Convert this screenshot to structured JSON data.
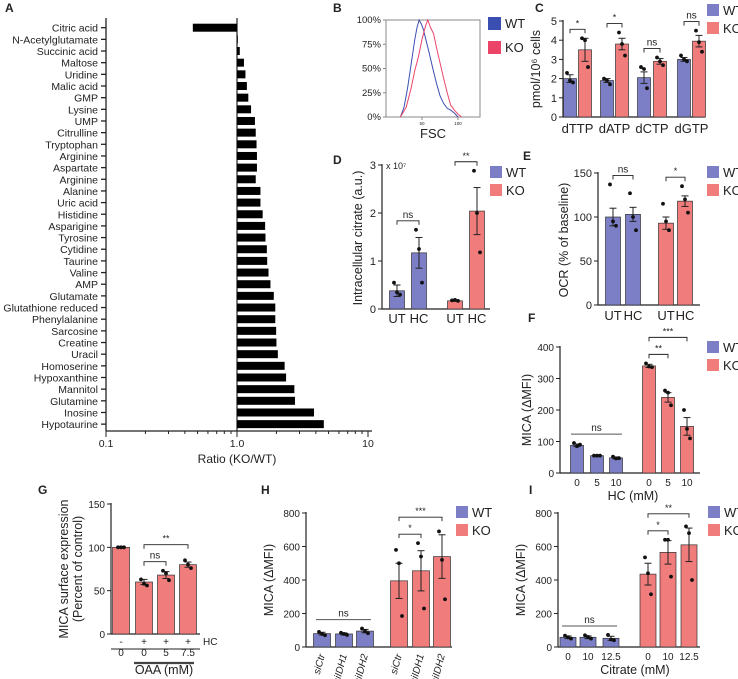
{
  "panel_letters": [
    "A",
    "B",
    "C",
    "D",
    "E",
    "F",
    "G",
    "H",
    "I"
  ],
  "colors": {
    "WT": "#7c7fc6",
    "KO": "#f07c7c",
    "WT_line": "#3b4fb3",
    "KO_line": "#ec4468"
  },
  "chart_data": [
    {
      "panel": "A",
      "type": "bar",
      "orientation": "horizontal",
      "xscale": "log",
      "xlim": [
        0.1,
        10
      ],
      "xticks": [
        "0.1",
        "1.0",
        "10"
      ],
      "xlabel": "Ratio (KO/WT)",
      "categories": [
        "Citric acid",
        "N-Acetylglutamate",
        "Succinic acid",
        "Maltose",
        "Uridine",
        "Malic acid",
        "GMP",
        "Lysine",
        "UMP",
        "Citrulline",
        "Tryptophan",
        "Arginine",
        "Aspartate",
        "Arginine",
        "Alanine",
        "Uric acid",
        "Histidine",
        "Asparigine",
        "Tyrosine",
        "Cytidine",
        "Taurine",
        "Valine",
        "AMP",
        "Glutamate",
        "Glutathione reduced",
        "Phenylalanine",
        "Sarcosine",
        "Creatine",
        "Uracil",
        "Homoserine",
        "Hypoxanthine",
        "Mannitol",
        "Glutamine",
        "Inosine",
        "Hypotaurine"
      ],
      "values": [
        0.46,
        1.0,
        1.05,
        1.13,
        1.16,
        1.19,
        1.22,
        1.28,
        1.37,
        1.39,
        1.41,
        1.42,
        1.42,
        1.39,
        1.51,
        1.51,
        1.57,
        1.64,
        1.65,
        1.69,
        1.7,
        1.74,
        1.8,
        1.91,
        1.96,
        1.96,
        1.99,
        2.0,
        2.05,
        2.31,
        2.37,
        2.74,
        2.77,
        3.87,
        4.6
      ]
    },
    {
      "panel": "B",
      "type": "line",
      "xlabel": "FSC",
      "yticks": [
        "0%",
        "25%",
        "50%",
        "75%",
        "100%"
      ],
      "ytick_values": [
        0,
        25,
        50,
        75,
        100
      ],
      "xticks": [
        "50",
        "100"
      ],
      "xtick_values": [
        50,
        100
      ],
      "legend": [
        "WT",
        "KO"
      ],
      "series": [
        {
          "name": "WT",
          "points": [
            [
              20,
              0
            ],
            [
              25,
              10
            ],
            [
              30,
              30
            ],
            [
              35,
              55
            ],
            [
              40,
              80
            ],
            [
              43,
              92
            ],
            [
              46,
              100
            ],
            [
              49,
              96
            ],
            [
              52,
              90
            ],
            [
              56,
              78
            ],
            [
              60,
              66
            ],
            [
              65,
              50
            ],
            [
              70,
              35
            ],
            [
              75,
              22
            ],
            [
              80,
              14
            ],
            [
              85,
              9
            ],
            [
              90,
              7
            ],
            [
              95,
              4
            ],
            [
              100,
              0
            ]
          ]
        },
        {
          "name": "KO",
          "points": [
            [
              20,
              0
            ],
            [
              28,
              10
            ],
            [
              35,
              30
            ],
            [
              40,
              48
            ],
            [
              45,
              62
            ],
            [
              50,
              80
            ],
            [
              55,
              94
            ],
            [
              58,
              100
            ],
            [
              62,
              92
            ],
            [
              66,
              86
            ],
            [
              70,
              72
            ],
            [
              75,
              56
            ],
            [
              80,
              40
            ],
            [
              85,
              25
            ],
            [
              90,
              12
            ],
            [
              95,
              7
            ],
            [
              100,
              3
            ],
            [
              105,
              0
            ]
          ]
        }
      ]
    },
    {
      "panel": "C",
      "type": "bar",
      "ylabel": "pmol/10⁶ cells",
      "ylim": [
        0,
        5
      ],
      "yticks": [
        "0",
        "1",
        "2",
        "3",
        "4",
        "5"
      ],
      "ytick_values": [
        0,
        1,
        2,
        3,
        4,
        5
      ],
      "legend": [
        "WT",
        "KO"
      ],
      "group_labels": [
        "dTTP",
        "dATP",
        "dCTP",
        "dGTP"
      ],
      "bars": [
        {
          "series": "WT",
          "value": 2.0,
          "error": 0.2,
          "points": [
            2.3,
            1.9,
            1.8
          ]
        },
        {
          "series": "KO",
          "value": 3.5,
          "error": 0.6,
          "points": [
            4.1,
            4.0,
            2.6
          ]
        },
        {
          "series": "WT",
          "value": 1.9,
          "error": 0.1,
          "points": [
            2.0,
            1.9,
            1.7
          ]
        },
        {
          "series": "KO",
          "value": 3.8,
          "error": 0.3,
          "points": [
            4.4,
            3.8,
            3.2
          ]
        },
        {
          "series": "WT",
          "value": 2.05,
          "error": 0.3,
          "points": [
            2.6,
            2.5,
            1.5
          ]
        },
        {
          "series": "KO",
          "value": 2.9,
          "error": 0.15,
          "points": [
            3.1,
            2.9,
            2.7
          ]
        },
        {
          "series": "WT",
          "value": 3.0,
          "error": 0.1,
          "points": [
            3.2,
            3.0,
            2.9
          ]
        },
        {
          "series": "KO",
          "value": 3.95,
          "error": 0.3,
          "points": [
            4.5,
            3.9,
            3.4
          ]
        }
      ],
      "brackets": [
        {
          "from": 0,
          "to": 1,
          "label": "*"
        },
        {
          "from": 2,
          "to": 3,
          "label": "*"
        },
        {
          "from": 4,
          "to": 5,
          "label": "ns"
        },
        {
          "from": 6,
          "to": 7,
          "label": "ns"
        }
      ]
    },
    {
      "panel": "D",
      "type": "bar",
      "ylabel": "Intracellular citrate (a.u.)",
      "ylim": [
        0,
        3
      ],
      "yticks": [
        "0",
        "1",
        "2",
        "3"
      ],
      "ytick_values": [
        0,
        1,
        2,
        3
      ],
      "y_multiplier": "x 10⁷",
      "legend": [
        "WT",
        "KO"
      ],
      "bars": [
        {
          "series": "WT",
          "label": "UT",
          "value": 0.38,
          "error": 0.12,
          "points": [
            0.55,
            0.35,
            0.3
          ]
        },
        {
          "series": "WT",
          "label": "HC",
          "value": 1.17,
          "error": 0.32,
          "points": [
            1.65,
            1.25,
            0.55
          ]
        },
        {
          "series": "KO",
          "label": "UT",
          "value": 0.17,
          "error": 0.01,
          "points": [
            0.18,
            0.19,
            0.17
          ]
        },
        {
          "series": "KO",
          "label": "HC",
          "value": 2.04,
          "error": 0.49,
          "points": [
            2.88,
            2.0,
            1.18
          ]
        }
      ],
      "brackets": [
        {
          "from": 0,
          "to": 1,
          "label": "ns"
        },
        {
          "from": 2,
          "to": 3,
          "label": "**"
        }
      ]
    },
    {
      "panel": "E",
      "type": "bar",
      "ylabel": "OCR (% of baseline)",
      "ylim": [
        0,
        150
      ],
      "yticks": [
        "0",
        "50",
        "100",
        "150"
      ],
      "ytick_values": [
        0,
        50,
        100,
        150
      ],
      "legend": [
        "WT",
        "KO"
      ],
      "bars": [
        {
          "series": "WT",
          "label": "UT",
          "value": 100,
          "error": 10,
          "points": [
            137,
            95,
            90
          ]
        },
        {
          "series": "WT",
          "label": "HC",
          "value": 103,
          "error": 8,
          "points": [
            127,
            100,
            85
          ]
        },
        {
          "series": "KO",
          "label": "UT",
          "value": 93,
          "error": 7,
          "points": [
            115,
            95,
            85
          ]
        },
        {
          "series": "KO",
          "label": "HC",
          "value": 118,
          "error": 6,
          "points": [
            135,
            120,
            105
          ]
        }
      ],
      "brackets": [
        {
          "from": 0,
          "to": 1,
          "label": "ns"
        },
        {
          "from": 2,
          "to": 3,
          "label": "*"
        }
      ]
    },
    {
      "panel": "F",
      "type": "bar",
      "ylabel": "MICA (ΔMFI)",
      "ylim": [
        0,
        400
      ],
      "yticks": [
        "0",
        "100",
        "200",
        "300",
        "400"
      ],
      "ytick_values": [
        0,
        100,
        200,
        300,
        400
      ],
      "xlabel": "HC (mM)",
      "legend": [
        "WT",
        "KO"
      ],
      "bars": [
        {
          "series": "WT",
          "label": "0",
          "value": 88,
          "error": 4,
          "points": [
            95,
            85,
            90
          ]
        },
        {
          "series": "WT",
          "label": "5",
          "value": 55,
          "error": 1,
          "points": [
            55,
            55,
            55
          ]
        },
        {
          "series": "WT",
          "label": "10",
          "value": 48,
          "error": 3,
          "points": [
            52,
            46,
            47
          ]
        },
        {
          "series": "KO",
          "label": "0",
          "value": 340,
          "error": 5,
          "points": [
            348,
            338,
            336
          ]
        },
        {
          "series": "KO",
          "label": "5",
          "value": 240,
          "error": 15,
          "points": [
            262,
            255,
            215
          ]
        },
        {
          "series": "KO",
          "label": "10",
          "value": 148,
          "error": 28,
          "points": [
            200,
            140,
            110
          ]
        }
      ],
      "brackets": [
        {
          "from": 0,
          "to": 2,
          "label": "ns",
          "type": "line"
        },
        {
          "from": 3,
          "to": 4,
          "label": "**"
        },
        {
          "from": 3,
          "to": 5,
          "label": "***"
        }
      ]
    },
    {
      "panel": "G",
      "type": "bar",
      "ylabel": [
        "MICA surface expression",
        "(Percent of control)"
      ],
      "ylim": [
        0,
        150
      ],
      "yticks": [
        "0",
        "50",
        "100",
        "150"
      ],
      "ytick_values": [
        0,
        50,
        100,
        150
      ],
      "hc_label": "HC",
      "xlabel": "OAA (mM)",
      "bars": [
        {
          "series": "KO",
          "hc": "-",
          "label": "0",
          "value": 100,
          "error": 0,
          "points": [
            100,
            100,
            100
          ]
        },
        {
          "series": "KO",
          "hc": "+",
          "label": "0",
          "value": 60,
          "error": 3,
          "points": [
            63,
            58,
            56
          ]
        },
        {
          "series": "KO",
          "hc": "+",
          "label": "5",
          "value": 68,
          "error": 4,
          "points": [
            73,
            70,
            62
          ]
        },
        {
          "series": "KO",
          "hc": "+",
          "label": "7.5",
          "value": 80,
          "error": 3,
          "points": [
            85,
            80,
            76
          ]
        }
      ],
      "brackets": [
        {
          "from": 1,
          "to": 2,
          "label": "ns"
        },
        {
          "from": 1,
          "to": 3,
          "label": "**"
        }
      ]
    },
    {
      "panel": "H",
      "type": "bar",
      "ylabel": "MICA (ΔMFI)",
      "ylim": [
        0,
        800
      ],
      "yticks": [
        "0",
        "200",
        "400",
        "600",
        "800"
      ],
      "ytick_values": [
        0,
        200,
        400,
        600,
        800
      ],
      "legend": [
        "WT",
        "KO"
      ],
      "bars": [
        {
          "series": "WT",
          "label": "siCtr",
          "value": 80,
          "error": 8,
          "points": [
            90,
            78,
            70
          ]
        },
        {
          "series": "WT",
          "label": "siIDH1",
          "value": 78,
          "error": 6,
          "points": [
            85,
            78,
            72
          ]
        },
        {
          "series": "WT",
          "label": "siIDH2",
          "value": 95,
          "error": 10,
          "points": [
            110,
            95,
            82
          ]
        },
        {
          "series": "KO",
          "label": "siCtr",
          "value": 395,
          "error": 105,
          "points": [
            580,
            500,
            185
          ]
        },
        {
          "series": "KO",
          "label": "siIDH1",
          "value": 455,
          "error": 120,
          "points": [
            620,
            540,
            230
          ]
        },
        {
          "series": "KO",
          "label": "siIDH2",
          "value": 540,
          "error": 130,
          "points": [
            690,
            520,
            285
          ]
        }
      ],
      "brackets": [
        {
          "from": 0,
          "to": 2,
          "label": "ns",
          "type": "line"
        },
        {
          "from": 3,
          "to": 4,
          "label": "*"
        },
        {
          "from": 3,
          "to": 5,
          "label": "***"
        }
      ]
    },
    {
      "panel": "I",
      "type": "bar",
      "ylabel": "MICA (ΔMFI)",
      "ylim": [
        0,
        800
      ],
      "yticks": [
        "0",
        "200",
        "400",
        "600",
        "800"
      ],
      "ytick_values": [
        0,
        200,
        400,
        600,
        800
      ],
      "xlabel": "Citrate (mM)",
      "legend": [
        "WT",
        "KO"
      ],
      "bars": [
        {
          "series": "WT",
          "label": "0",
          "value": 58,
          "error": 8,
          "points": [
            68,
            58,
            50
          ]
        },
        {
          "series": "WT",
          "label": "10",
          "value": 58,
          "error": 8,
          "points": [
            70,
            60,
            50
          ]
        },
        {
          "series": "WT",
          "label": "12.5",
          "value": 52,
          "error": 12,
          "points": [
            72,
            45,
            40
          ]
        },
        {
          "series": "KO",
          "label": "0",
          "value": 435,
          "error": 65,
          "points": [
            535,
            440,
            315
          ]
        },
        {
          "series": "KO",
          "label": "10",
          "value": 565,
          "error": 70,
          "points": [
            640,
            640,
            420
          ]
        },
        {
          "series": "KO",
          "label": "12.5",
          "value": 610,
          "error": 100,
          "points": [
            720,
            680,
            400
          ]
        }
      ],
      "brackets": [
        {
          "from": 0,
          "to": 2,
          "label": "ns",
          "type": "line"
        },
        {
          "from": 3,
          "to": 4,
          "label": "*"
        },
        {
          "from": 3,
          "to": 5,
          "label": "**"
        }
      ]
    }
  ]
}
